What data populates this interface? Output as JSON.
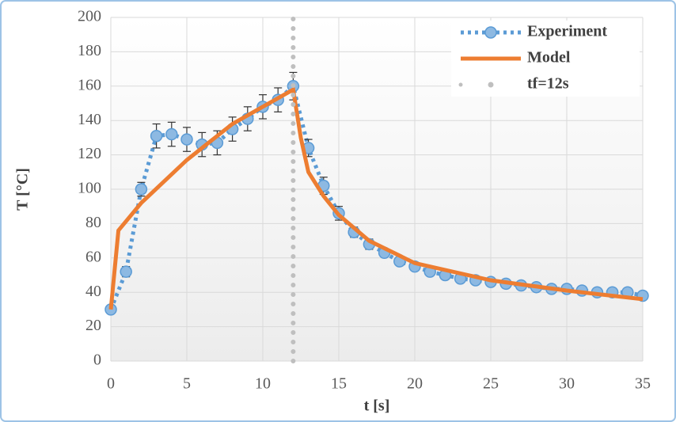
{
  "chart_data": {
    "type": "line",
    "xlabel": "t [s]",
    "ylabel": "T [°C]",
    "xlim": [
      0,
      35
    ],
    "xticks": [
      0,
      5,
      10,
      15,
      20,
      25,
      30,
      35
    ],
    "ylim": [
      0,
      200
    ],
    "yticks": [
      0,
      20,
      40,
      60,
      80,
      100,
      120,
      140,
      160,
      180,
      200
    ],
    "grid": true,
    "legend": "upper right",
    "series": [
      {
        "name": "Experiment",
        "color": "#5b9bd5",
        "line_style": "dotted",
        "marker": "circle",
        "x": [
          0,
          1,
          2,
          3,
          4,
          5,
          6,
          7,
          8,
          9,
          10,
          11,
          12,
          13,
          14,
          15,
          16,
          17,
          18,
          19,
          20,
          21,
          22,
          23,
          24,
          25,
          26,
          27,
          28,
          29,
          30,
          31,
          32,
          33,
          34,
          35
        ],
        "values": [
          30,
          52,
          100,
          131,
          132,
          129,
          126,
          127,
          135,
          141,
          148,
          152,
          160,
          124,
          102,
          86,
          75,
          68,
          63,
          58,
          55,
          52,
          50,
          48,
          47,
          46,
          45,
          44,
          43,
          42,
          42,
          41,
          40,
          40,
          40,
          38
        ],
        "errors": [
          2,
          3,
          4,
          7,
          7,
          7,
          7,
          7,
          7,
          7,
          7,
          7,
          8,
          5,
          5,
          4,
          3,
          3,
          2,
          2,
          2,
          2,
          2,
          2,
          2,
          2,
          2,
          2,
          2,
          2,
          2,
          2,
          2,
          2,
          2,
          2
        ]
      },
      {
        "name": "Model",
        "color": "#ed7d31",
        "line_style": "solid",
        "x": [
          0,
          0.5,
          2,
          5,
          8,
          10,
          12,
          12.5,
          13,
          14,
          15,
          17,
          20,
          25,
          30,
          35
        ],
        "values": [
          30,
          76,
          92,
          117,
          138,
          148,
          158,
          130,
          110,
          96,
          85,
          70,
          57,
          47,
          41,
          36
        ]
      },
      {
        "name": "tf=12s",
        "color": "#bfbfbf",
        "line_style": "dotted",
        "x": [
          12,
          12
        ],
        "values": [
          0,
          200
        ]
      }
    ]
  }
}
